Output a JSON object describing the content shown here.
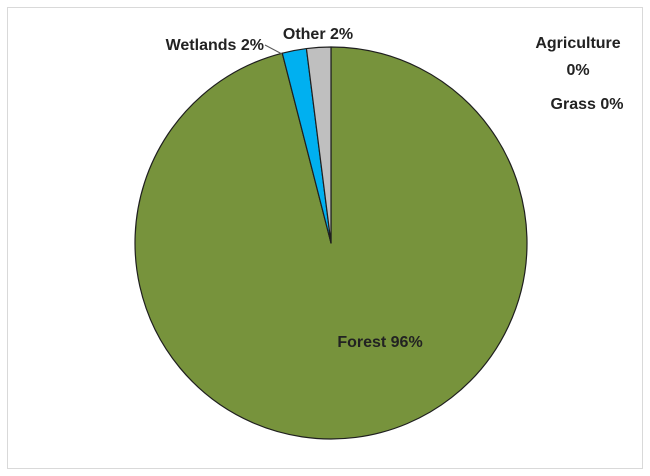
{
  "chart_data": {
    "type": "pie",
    "start_angle_deg": 0,
    "direction": "clockwise",
    "slices": [
      {
        "label": "Forest",
        "value": 96,
        "color": "#77933c",
        "text": "Forest 96%"
      },
      {
        "label": "Agriculture",
        "value": 0,
        "color": "#4f81bd",
        "text": "Agriculture 0%"
      },
      {
        "label": "Grass",
        "value": 0,
        "color": "#c0504d",
        "text": "Grass 0%"
      },
      {
        "label": "Wetlands",
        "value": 2,
        "color": "#00b0f0",
        "text": "Wetlands 2%"
      },
      {
        "label": "Other",
        "value": 2,
        "color": "#bfbfbf",
        "text": "Other 2%"
      }
    ],
    "data_labels": {
      "forest": "Forest 96%",
      "wetlands": "Wetlands 2%",
      "other": "Other 2%",
      "agriculture_line1": "Agriculture",
      "agriculture_line2": "0%",
      "grass": "Grass 0%"
    },
    "legend": "none"
  }
}
